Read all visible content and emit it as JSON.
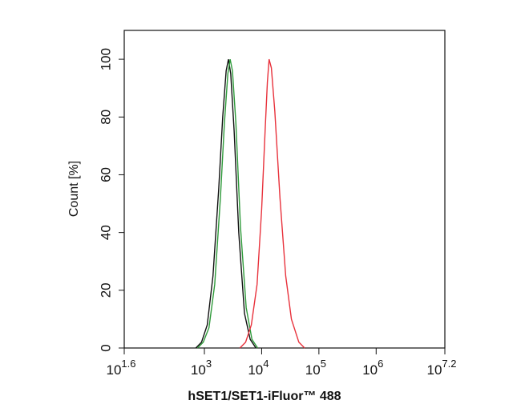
{
  "chart_data": {
    "type": "line",
    "x_label": "hSET1/SET1-iFluor™ 488",
    "y_label": "Count [%]",
    "xscale": "log",
    "xlim": [
      39.81,
      15848931.92
    ],
    "xticks": [
      {
        "value": 39.81,
        "label": "10",
        "exponent": "1.6"
      },
      {
        "value": 1000,
        "label": "10",
        "exponent": "3"
      },
      {
        "value": 10000,
        "label": "10",
        "exponent": "4"
      },
      {
        "value": 100000,
        "label": "10",
        "exponent": "5"
      },
      {
        "value": 1000000,
        "label": "10",
        "exponent": "6"
      },
      {
        "value": 15848931.92,
        "label": "10",
        "exponent": "7.2"
      }
    ],
    "ylim": [
      0,
      110
    ],
    "yticks": [
      0,
      20,
      40,
      60,
      80,
      100
    ],
    "series": [
      {
        "color": "#111111",
        "x": [
          708,
          891,
          1122,
          1413,
          1778,
          2089,
          2399,
          2630,
          2884,
          3311,
          3981,
          5012,
          6310,
          7943
        ],
        "values": [
          0,
          2,
          8,
          25,
          55,
          80,
          96,
          100,
          95,
          75,
          40,
          12,
          3,
          0
        ]
      },
      {
        "color": "#2e9a3a",
        "x": [
          759,
          955,
          1202,
          1514,
          1905,
          2239,
          2570,
          2818,
          3090,
          3548,
          4266,
          5370,
          6761,
          8511
        ],
        "values": [
          0,
          2,
          7,
          22,
          52,
          78,
          95,
          100,
          96,
          78,
          42,
          14,
          3,
          0
        ]
      },
      {
        "color": "#e8323c",
        "x": [
          4169,
          5248,
          6607,
          8318,
          10000,
          11482,
          12589,
          13490,
          14791,
          16982,
          20893,
          26303,
          33113,
          44668,
          56234
        ],
        "values": [
          0,
          2,
          8,
          22,
          48,
          75,
          92,
          100,
          97,
          82,
          52,
          25,
          10,
          2,
          0
        ]
      }
    ]
  }
}
